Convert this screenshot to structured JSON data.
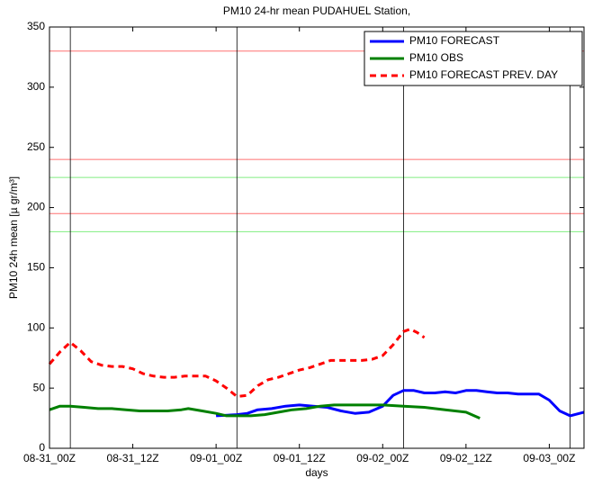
{
  "chart_data": {
    "type": "line",
    "title": "PM10 24-hr mean PUDAHUEL Station,",
    "xlabel": "days",
    "ylabel": "PM10 24h mean [µ gr/m³]",
    "xlim": [
      0,
      77
    ],
    "ylim": [
      0,
      350
    ],
    "xticks": [
      {
        "value": 0,
        "label": "08-31_00Z"
      },
      {
        "value": 12,
        "label": "08-31_12Z"
      },
      {
        "value": 24,
        "label": "09-01_00Z"
      },
      {
        "value": 36,
        "label": "09-01_12Z"
      },
      {
        "value": 48,
        "label": "09-02_00Z"
      },
      {
        "value": 60,
        "label": "09-02_12Z"
      },
      {
        "value": 72,
        "label": "09-03_00Z"
      }
    ],
    "yticks": [
      0,
      50,
      100,
      150,
      200,
      250,
      300,
      350
    ],
    "vlines": [
      3,
      27,
      51,
      75
    ],
    "hlines": [
      {
        "value": 330,
        "color": "#ff7070"
      },
      {
        "value": 240,
        "color": "#ff7070"
      },
      {
        "value": 225,
        "color": "#80ee80"
      },
      {
        "value": 195,
        "color": "#ff7070"
      },
      {
        "value": 180,
        "color": "#80ee80"
      }
    ],
    "legend": "upper right",
    "series": [
      {
        "name": "PM10 FORECAST",
        "color": "#0000ff",
        "dashed": false,
        "x": [
          24,
          27,
          28.5,
          30,
          32,
          34,
          36,
          38,
          40,
          42,
          44,
          46,
          48,
          49.5,
          51,
          52.5,
          54,
          55.5,
          57,
          58.5,
          60,
          61.5,
          63,
          64.5,
          66,
          67.5,
          69,
          70.5,
          72,
          73.5,
          75,
          77
        ],
        "values": [
          27,
          28,
          29,
          32,
          33,
          35,
          36,
          35,
          34,
          31,
          29,
          30,
          35,
          44,
          48,
          48,
          46,
          46,
          47,
          46,
          48,
          48,
          47,
          46,
          46,
          45,
          45,
          45,
          40,
          31,
          27,
          30
        ]
      },
      {
        "name": "PM10 OBS",
        "color": "#008000",
        "dashed": false,
        "x": [
          0,
          1.5,
          3,
          5,
          7,
          9,
          11,
          13,
          15,
          17,
          19,
          20,
          22,
          24,
          25.5,
          27,
          29,
          31,
          33,
          35,
          37,
          39,
          41,
          43,
          45,
          48,
          51,
          54,
          57,
          60,
          62
        ],
        "values": [
          32,
          35,
          35,
          34,
          33,
          33,
          32,
          31,
          31,
          31,
          32,
          33,
          31,
          29,
          27,
          27,
          27,
          28,
          30,
          32,
          33,
          35,
          36,
          36,
          36,
          36,
          35,
          34,
          32,
          30,
          25
        ]
      },
      {
        "name": "PM10 FORECAST PREV. DAY",
        "color": "#ff0000",
        "dashed": true,
        "x": [
          0,
          1.5,
          3,
          4.5,
          6,
          7.5,
          9,
          10.5,
          12,
          13.5,
          15,
          16.5,
          18,
          19.5,
          21,
          22.5,
          24,
          25.5,
          27,
          28.5,
          30,
          31.5,
          33,
          34.5,
          36,
          37.5,
          39,
          40.5,
          42,
          43.5,
          45,
          46.5,
          48,
          49.5,
          51,
          52,
          53,
          54
        ],
        "values": [
          70,
          80,
          88,
          81,
          72,
          69,
          68,
          68,
          66,
          62,
          60,
          59,
          59,
          60,
          60,
          60,
          56,
          50,
          43,
          44,
          52,
          57,
          59,
          62,
          65,
          67,
          70,
          73,
          73,
          73,
          73,
          74,
          77,
          86,
          97,
          99,
          96,
          92
        ]
      }
    ]
  }
}
